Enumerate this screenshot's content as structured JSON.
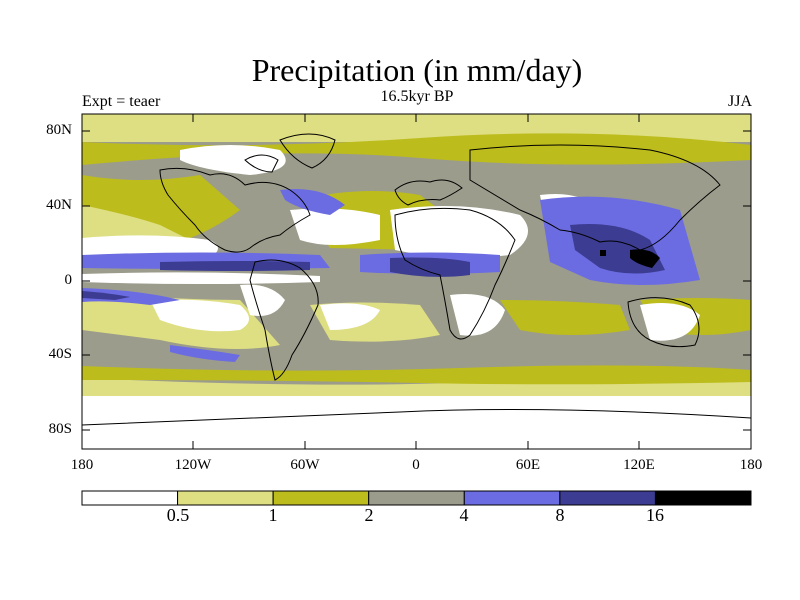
{
  "header": {
    "title": "Precipitation (in mm/day)",
    "subtitle": "16.5kyr BP",
    "left_label": "Expt = teaer",
    "right_label": "JJA"
  },
  "axes": {
    "lat_labels": [
      "80N",
      "40N",
      "0",
      "40S",
      "80S"
    ],
    "lon_labels": [
      "180",
      "120W",
      "60W",
      "0",
      "60E",
      "120E",
      "180"
    ]
  },
  "colorbar": {
    "labels": [
      "0.5",
      "1",
      "2",
      "4",
      "8",
      "16"
    ],
    "colors": [
      "#ffffff",
      "#dede82",
      "#bcbc1c",
      "#9c9c8c",
      "#6c6ce2",
      "#3c3c92",
      "#000000"
    ]
  }
}
